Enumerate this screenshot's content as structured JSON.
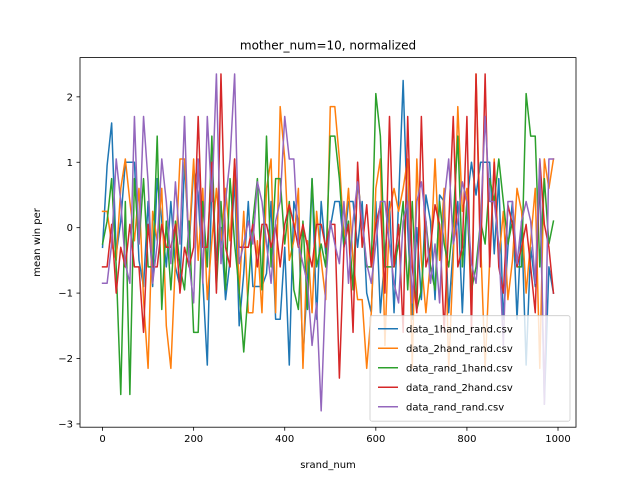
{
  "chart_data": {
    "type": "line",
    "title": "mother_num=10, normalized",
    "xlabel": "srand_num",
    "ylabel": "mean win per",
    "xlim": [
      -49.5,
      1039.5
    ],
    "ylim": [
      -3.05,
      2.6
    ],
    "xticks": [
      0,
      200,
      400,
      600,
      800,
      1000
    ],
    "yticks": [
      -3,
      -2,
      -1,
      0,
      1,
      2
    ],
    "grid": false,
    "legend_position": "lower right",
    "series": [
      {
        "name": "data_1hand_rand.csv",
        "color": "#1f77b4",
        "x": [
          0,
          10,
          20,
          30,
          40,
          50,
          60,
          70,
          80,
          90,
          100,
          110,
          120,
          130,
          140,
          150,
          160,
          170,
          180,
          190,
          200,
          210,
          220,
          230,
          240,
          250,
          260,
          270,
          280,
          290,
          300,
          310,
          320,
          330,
          340,
          350,
          360,
          370,
          380,
          390,
          400,
          410,
          420,
          430,
          440,
          450,
          460,
          470,
          480,
          490,
          500,
          510,
          520,
          530,
          540,
          550,
          560,
          570,
          580,
          590,
          600,
          610,
          620,
          630,
          640,
          650,
          660,
          670,
          680,
          690,
          700,
          710,
          720,
          730,
          740,
          750,
          760,
          770,
          780,
          790,
          800,
          810,
          820,
          830,
          840,
          850,
          860,
          870,
          880,
          890,
          900,
          910,
          920,
          930,
          940,
          950,
          960,
          970,
          980,
          990
        ],
        "y": [
          -0.3,
          0.95,
          1.6,
          -0.4,
          0.1,
          1.0,
          1.0,
          1.0,
          -0.5,
          -0.9,
          0.4,
          -0.9,
          0.75,
          0.1,
          -0.6,
          0.4,
          -0.6,
          -0.9,
          1.0,
          -0.3,
          0.9,
          0.5,
          -0.8,
          -2.1,
          0.75,
          -0.5,
          0.0,
          -1.1,
          -0.5,
          0.75,
          -1.5,
          -0.7,
          0.4,
          -0.9,
          -0.9,
          -0.9,
          -0.7,
          0.4,
          -1.4,
          -1.4,
          -0.3,
          -2.1,
          0.4,
          0.1,
          -2.0,
          -0.8,
          0.75,
          -1.4,
          0.4,
          -0.4,
          0.0,
          0.4,
          0.4,
          -0.3,
          0.4,
          0.4,
          -0.3,
          0.4,
          -1.0,
          -1.3,
          0.4,
          -1.3,
          -0.4,
          0.4,
          -1.3,
          0.4,
          2.25,
          0.0,
          -1.4,
          0.0,
          -1.1,
          0.5,
          0.1,
          -1.1,
          0.5,
          0.4,
          -1.3,
          -0.3,
          0.4,
          -1.3,
          0.4,
          1.0,
          0.5,
          1.0,
          1.0,
          1.0,
          -0.4,
          0.75,
          -1.4,
          -0.3,
          0.4,
          -1.4,
          0.1,
          -2.1,
          -0.3,
          -0.9,
          0.75,
          -2.7,
          -0.6,
          -1.0
        ]
      },
      {
        "name": "data_2hand_rand.csv",
        "color": "#ff7f0e",
        "x": [
          0,
          10,
          20,
          30,
          40,
          50,
          60,
          70,
          80,
          90,
          100,
          110,
          120,
          130,
          140,
          150,
          160,
          170,
          180,
          190,
          200,
          210,
          220,
          230,
          240,
          250,
          260,
          270,
          280,
          290,
          300,
          310,
          320,
          330,
          340,
          350,
          360,
          370,
          380,
          390,
          400,
          410,
          420,
          430,
          440,
          450,
          460,
          470,
          480,
          490,
          500,
          510,
          520,
          530,
          540,
          550,
          560,
          570,
          580,
          590,
          600,
          610,
          620,
          630,
          640,
          650,
          660,
          670,
          680,
          690,
          700,
          710,
          720,
          730,
          740,
          750,
          760,
          770,
          780,
          790,
          800,
          810,
          820,
          830,
          840,
          850,
          860,
          870,
          880,
          890,
          900,
          910,
          920,
          930,
          940,
          950,
          960,
          970,
          980,
          990
        ],
        "y": [
          0.25,
          0.25,
          -0.25,
          -0.5,
          0.6,
          1.05,
          0.4,
          -0.2,
          0.6,
          -1.1,
          -2.15,
          0.25,
          -0.2,
          0.6,
          -1.5,
          -2.15,
          -0.5,
          1.05,
          1.05,
          -0.2,
          1.05,
          -0.5,
          0.6,
          -1.1,
          -0.2,
          0.6,
          -0.2,
          0.6,
          -0.2,
          1.05,
          -1.0,
          0.25,
          -1.3,
          -1.3,
          -0.2,
          -1.3,
          0.6,
          1.05,
          -1.3,
          1.85,
          1.05,
          -0.5,
          -0.2,
          0.6,
          -2.15,
          -0.2,
          -1.3,
          0.25,
          -0.5,
          -1.1,
          1.85,
          1.85,
          1.05,
          -0.2,
          0.6,
          -0.5,
          -1.1,
          -1.1,
          -2.15,
          -1.3,
          0.6,
          1.05,
          -1.8,
          0.25,
          0.6,
          0.25,
          0.6,
          1.05,
          -2.15,
          1.05,
          -0.5,
          -1.3,
          -0.5,
          1.05,
          -0.5,
          0.6,
          -2.15,
          -0.5,
          1.85,
          0.25,
          0.6,
          -1.3,
          2.35,
          -0.2,
          -2.15,
          -0.5,
          1.05,
          -0.5,
          0.25,
          -1.1,
          -0.5,
          0.6,
          0.25,
          -1.0,
          -0.2,
          0.6,
          -2.15,
          1.05,
          0.6,
          1.05
        ]
      },
      {
        "name": "data_rand_1hand.csv",
        "color": "#2ca02c",
        "x": [
          0,
          10,
          20,
          30,
          40,
          50,
          60,
          70,
          80,
          90,
          100,
          110,
          120,
          130,
          140,
          150,
          160,
          170,
          180,
          190,
          200,
          210,
          220,
          230,
          240,
          250,
          260,
          270,
          280,
          290,
          300,
          310,
          320,
          330,
          340,
          350,
          360,
          370,
          380,
          390,
          400,
          410,
          420,
          430,
          440,
          450,
          460,
          470,
          480,
          490,
          500,
          510,
          520,
          530,
          540,
          550,
          560,
          570,
          580,
          590,
          600,
          610,
          620,
          630,
          640,
          650,
          660,
          670,
          680,
          690,
          700,
          710,
          720,
          730,
          740,
          750,
          760,
          770,
          780,
          790,
          800,
          810,
          820,
          830,
          840,
          850,
          860,
          870,
          880,
          890,
          900,
          910,
          920,
          930,
          940,
          950,
          960,
          970,
          980,
          990
        ],
        "y": [
          -0.25,
          0.1,
          0.75,
          -0.6,
          -2.55,
          0.4,
          -2.55,
          0.75,
          -0.25,
          0.75,
          -0.6,
          -0.6,
          1.4,
          -1.25,
          0.1,
          -0.95,
          0.1,
          -0.6,
          -0.95,
          0.1,
          -1.6,
          -1.6,
          0.4,
          -0.6,
          1.4,
          -0.95,
          0.4,
          -0.95,
          0.75,
          -0.25,
          -0.95,
          -1.9,
          -0.95,
          0.1,
          0.75,
          -0.95,
          1.4,
          -0.6,
          0.75,
          0.75,
          -0.25,
          0.4,
          -0.95,
          -1.25,
          0.1,
          -1.25,
          0.75,
          -0.6,
          -0.25,
          -0.6,
          1.4,
          1.4,
          0.75,
          -0.25,
          0.1,
          -0.95,
          0.75,
          0.1,
          -0.6,
          -0.6,
          2.05,
          1.4,
          -0.6,
          -0.6,
          -0.6,
          -0.25,
          0.4,
          -0.95,
          0.4,
          -1.25,
          -0.95,
          0.1,
          -0.6,
          -0.95,
          0.4,
          -0.25,
          -0.6,
          0.1,
          1.4,
          -0.6,
          0.4,
          -0.95,
          -0.6,
          0.1,
          -0.25,
          0.75,
          0.4,
          1.05,
          0.4,
          -0.25,
          0.1,
          -0.6,
          -0.6,
          2.05,
          1.4,
          1.4,
          -0.6,
          0.75,
          -0.25,
          0.1
        ]
      },
      {
        "name": "data_rand_2hand.csv",
        "color": "#d62728",
        "x": [
          0,
          10,
          20,
          30,
          40,
          50,
          60,
          70,
          80,
          90,
          100,
          110,
          120,
          130,
          140,
          150,
          160,
          170,
          180,
          190,
          200,
          210,
          220,
          230,
          240,
          250,
          260,
          270,
          280,
          290,
          300,
          310,
          320,
          330,
          340,
          350,
          360,
          370,
          380,
          390,
          400,
          410,
          420,
          430,
          440,
          450,
          460,
          470,
          480,
          490,
          500,
          510,
          520,
          530,
          540,
          550,
          560,
          570,
          580,
          590,
          600,
          610,
          620,
          630,
          640,
          650,
          660,
          670,
          680,
          690,
          700,
          710,
          720,
          730,
          740,
          750,
          760,
          770,
          780,
          790,
          800,
          810,
          820,
          830,
          840,
          850,
          860,
          870,
          880,
          890,
          900,
          910,
          920,
          930,
          940,
          950,
          960,
          970,
          980,
          990
        ],
        "y": [
          -0.6,
          -0.6,
          0.05,
          -1.0,
          -0.3,
          -0.6,
          0.05,
          -0.6,
          -0.6,
          -1.6,
          0.05,
          -0.6,
          -0.6,
          0.05,
          -0.3,
          -0.3,
          0.05,
          -1.0,
          -0.3,
          -0.6,
          -0.3,
          1.7,
          -0.3,
          -0.3,
          1.0,
          -1.0,
          2.35,
          -0.3,
          -0.6,
          1.05,
          -0.3,
          -0.3,
          -0.3,
          0.05,
          -0.6,
          0.05,
          0.05,
          -0.3,
          0.05,
          -0.6,
          0.05,
          0.35,
          0.05,
          -0.3,
          0.05,
          -0.3,
          -0.6,
          0.05,
          0.05,
          -0.3,
          0.05,
          0.05,
          -2.3,
          -0.3,
          0.05,
          -1.6,
          1.0,
          -0.3,
          0.35,
          -0.6,
          0.05,
          0.35,
          -1.0,
          1.7,
          -0.6,
          0.05,
          -1.6,
          1.7,
          -0.6,
          -1.3,
          1.7,
          -0.6,
          -0.3,
          0.35,
          0.05,
          -1.6,
          0.05,
          1.7,
          -0.6,
          -0.3,
          1.7,
          -1.6,
          2.35,
          -0.6,
          2.35,
          -0.6,
          1.0,
          -0.6,
          -1.0,
          0.35,
          0.05,
          -0.6,
          -0.3,
          0.05,
          -0.6,
          -1.3,
          1.05,
          0.05,
          -0.3,
          -1.0
        ]
      },
      {
        "name": "data_rand_rand.csv",
        "color": "#9467bd",
        "x": [
          0,
          10,
          20,
          30,
          40,
          50,
          60,
          70,
          80,
          90,
          100,
          110,
          120,
          130,
          140,
          150,
          160,
          170,
          180,
          190,
          200,
          210,
          220,
          230,
          240,
          250,
          260,
          270,
          280,
          290,
          300,
          310,
          320,
          330,
          340,
          350,
          360,
          370,
          380,
          390,
          400,
          410,
          420,
          430,
          440,
          450,
          460,
          470,
          480,
          490,
          500,
          510,
          520,
          530,
          540,
          550,
          560,
          570,
          580,
          590,
          600,
          610,
          620,
          630,
          640,
          650,
          660,
          670,
          680,
          690,
          700,
          710,
          720,
          730,
          740,
          750,
          760,
          770,
          780,
          790,
          800,
          810,
          820,
          830,
          840,
          850,
          860,
          870,
          880,
          890,
          900,
          910,
          920,
          930,
          940,
          950,
          960,
          970,
          980,
          990
        ],
        "y": [
          -0.85,
          -0.85,
          -0.25,
          1.05,
          0.4,
          -0.55,
          -0.85,
          1.7,
          -0.25,
          1.7,
          0.7,
          -0.85,
          -0.25,
          1.05,
          0.4,
          -0.55,
          0.7,
          -0.25,
          1.7,
          -0.55,
          -1.15,
          1.05,
          -0.85,
          1.7,
          0.4,
          2.35,
          -0.55,
          0.4,
          1.05,
          2.35,
          -0.55,
          -0.25,
          0.1,
          -0.25,
          0.7,
          0.4,
          -0.25,
          -0.85,
          0.1,
          0.4,
          1.7,
          1.05,
          1.05,
          -0.25,
          -0.55,
          -0.85,
          -1.8,
          -1.15,
          -2.8,
          -0.85,
          0.1,
          -0.25,
          -0.55,
          0.4,
          -0.85,
          0.1,
          0.7,
          0.1,
          -0.55,
          -0.85,
          -0.25,
          0.4,
          0.4,
          -0.25,
          -0.85,
          -1.15,
          0.1,
          0.4,
          -1.15,
          0.4,
          0.7,
          0.1,
          -0.85,
          -0.25,
          -1.15,
          0.4,
          1.05,
          -0.25,
          0.1,
          0.7,
          0.4,
          -0.55,
          -0.85,
          0.1,
          1.7,
          0.4,
          0.4,
          -0.25,
          -1.8,
          0.4,
          0.4,
          -0.55,
          0.1,
          0.4,
          0.1,
          -0.85,
          1.05,
          -2.7,
          1.05,
          1.05
        ]
      }
    ]
  }
}
